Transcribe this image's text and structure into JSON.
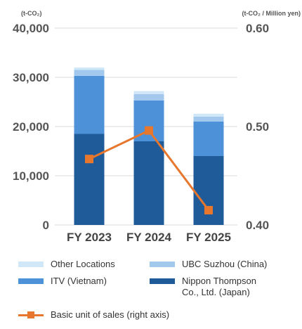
{
  "chart_data": {
    "type": "bar",
    "stacked": true,
    "categories": [
      "FY 2023",
      "FY 2024",
      "FY 2025"
    ],
    "y_left": {
      "unit": "(t-CO₂)",
      "ticks": [
        "40,000",
        "30,000",
        "20,000",
        "10,000",
        "0"
      ],
      "ylim": [
        0,
        40000
      ]
    },
    "y_right": {
      "unit": "(t-CO₂ / Million yen)",
      "ticks": [
        "0.60",
        "0.50",
        "0.40"
      ],
      "ylim": [
        0.4,
        0.6
      ]
    },
    "series": [
      {
        "name": "Nippon Thompson Co., Ltd. (Japan)",
        "legend_label": "Nippon Thompson\nCo., Ltd. (Japan)",
        "color": "#1f5b99",
        "values": [
          18500,
          17000,
          14000
        ]
      },
      {
        "name": "ITV (Vietnam)",
        "legend_label": "ITV (Vietnam)",
        "color": "#4d91d9",
        "values": [
          11800,
          8300,
          7000
        ]
      },
      {
        "name": "UBC Suzhou (China)",
        "legend_label": "UBC Suzhou (China)",
        "color": "#a3c8ee",
        "values": [
          1200,
          1300,
          1000
        ]
      },
      {
        "name": "Other Locations",
        "legend_label": "Other Locations",
        "color": "#cfe7f7",
        "values": [
          500,
          600,
          600
        ]
      }
    ],
    "line": {
      "name": "Basic unit of sales (right axis)",
      "color": "#e8772e",
      "values": [
        0.467,
        0.496,
        0.415
      ]
    },
    "grid": true,
    "legend_position": "bottom"
  }
}
